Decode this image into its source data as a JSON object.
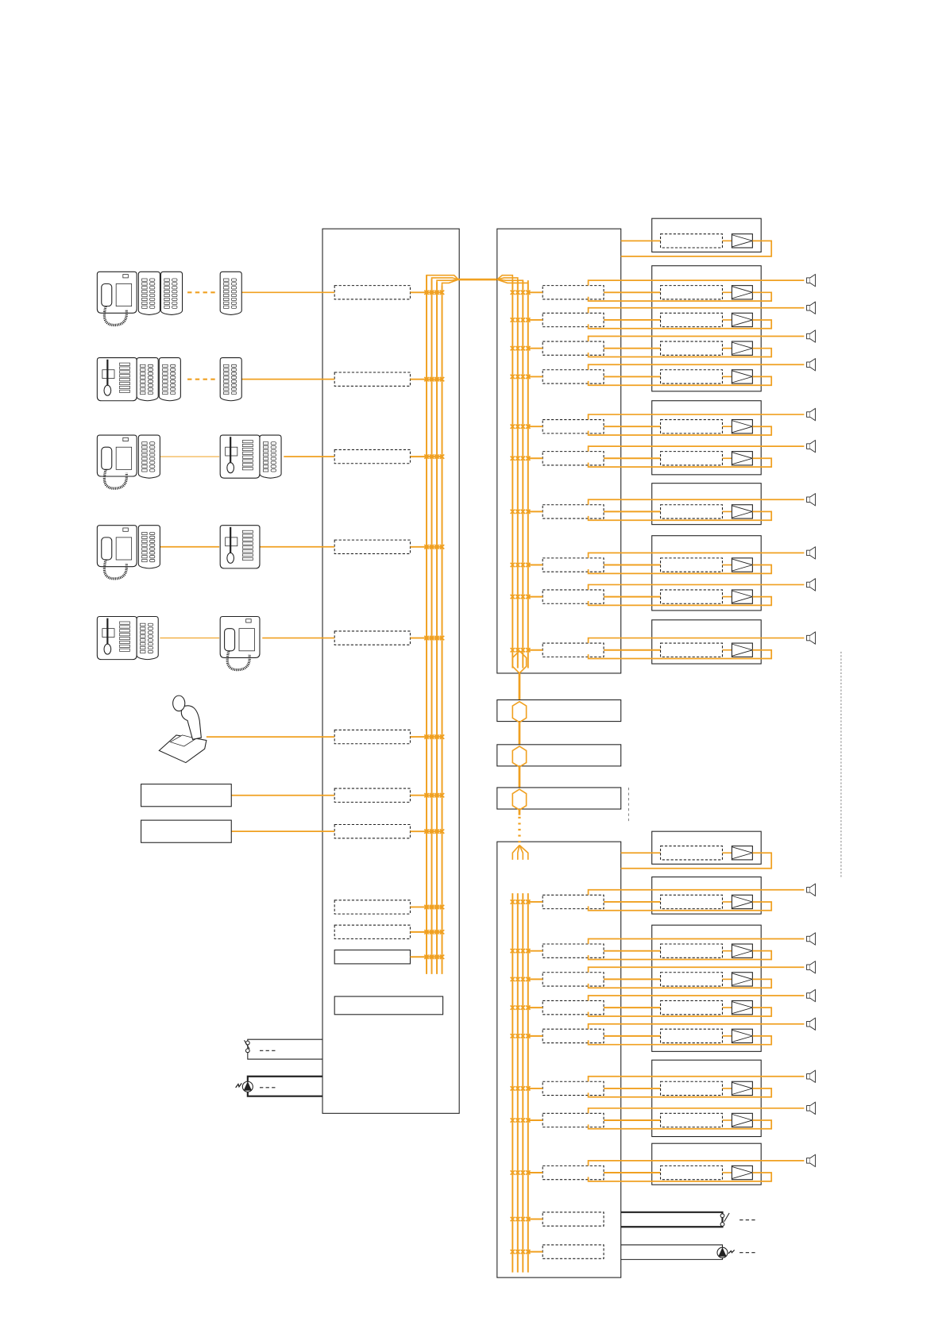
{
  "colors": {
    "wire": "#f0a020",
    "outline": "#222222",
    "background": "#ffffff",
    "guide": "#888888"
  },
  "icons": [
    "desk-console-with-handset-icon",
    "desk-console-with-gooseneck-mic-icon",
    "extension-keypad-icon",
    "paging-microphone-icon",
    "amplifier-icon",
    "loudspeaker-icon",
    "contact-switch-icon",
    "alarm-indicator-icon"
  ]
}
